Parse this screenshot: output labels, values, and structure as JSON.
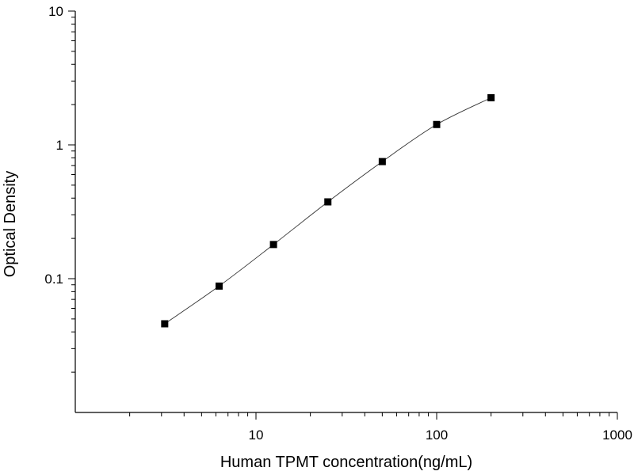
{
  "chart_data": {
    "type": "scatter",
    "title": "",
    "xlabel": "Human TPMT concentration(ng/mL)",
    "ylabel": "Optical Density",
    "xscale": "log",
    "yscale": "log",
    "xlim": [
      1,
      1000
    ],
    "ylim": [
      0.01,
      10
    ],
    "grid": false,
    "legend": "none",
    "x_ticks": [
      {
        "value": 10,
        "label": "10"
      },
      {
        "value": 100,
        "label": "100"
      },
      {
        "value": 1000,
        "label": "1000"
      }
    ],
    "y_ticks": [
      {
        "value": 0.1,
        "label": "0.1"
      },
      {
        "value": 1,
        "label": "1"
      },
      {
        "value": 10,
        "label": "10"
      }
    ],
    "series": [
      {
        "marker": "square",
        "color": "#000000",
        "fit": "smooth curve",
        "x": [
          3.125,
          6.25,
          12.5,
          25,
          50,
          100,
          200
        ],
        "y": [
          0.046,
          0.088,
          0.18,
          0.375,
          0.75,
          1.42,
          2.25
        ]
      }
    ]
  }
}
